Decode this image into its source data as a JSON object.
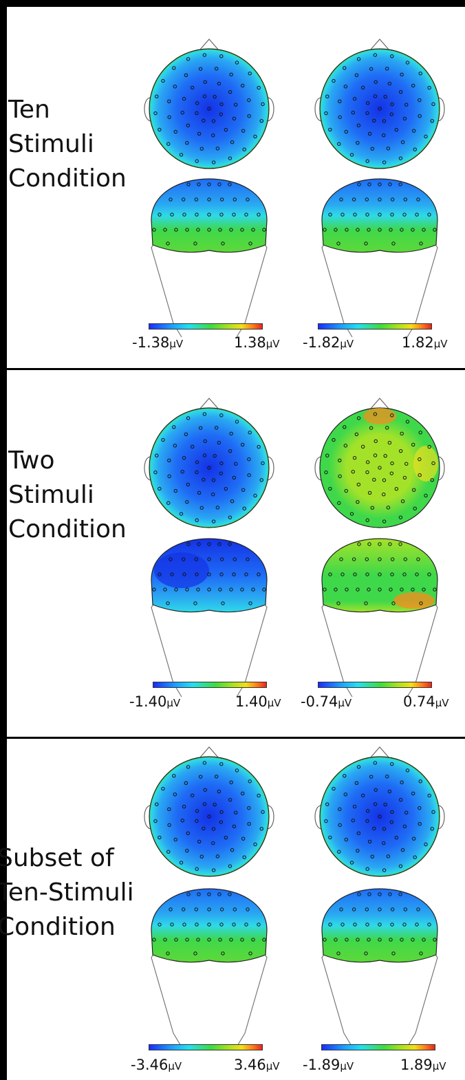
{
  "conditions": [
    {
      "label": [
        "Ten",
        "Stimuli",
        "Condition"
      ],
      "maps": [
        {
          "scale": {
            "min": "-1.38",
            "max": "1.38",
            "unit": "μV"
          },
          "top_pattern": "blue",
          "back_pattern": "blue-green"
        },
        {
          "scale": {
            "min": "-1.82",
            "max": "1.82",
            "unit": "μV"
          },
          "top_pattern": "blue",
          "back_pattern": "blue-green"
        }
      ]
    },
    {
      "label": [
        "Two",
        "Stimuli",
        "Condition"
      ],
      "maps": [
        {
          "scale": {
            "min": "-1.40",
            "max": "1.40",
            "unit": "μV"
          },
          "top_pattern": "blue",
          "back_pattern": "blue-left"
        },
        {
          "scale": {
            "min": "-0.74",
            "max": "0.74",
            "unit": "μV"
          },
          "top_pattern": "yellow-green",
          "back_pattern": "green-orange"
        }
      ]
    },
    {
      "label": [
        "Subset of",
        "Ten-Stimuli",
        "Condition"
      ],
      "maps": [
        {
          "scale": {
            "min": "-3.46",
            "max": "3.46",
            "unit": "μV"
          },
          "top_pattern": "blue",
          "back_pattern": "blue-green"
        },
        {
          "scale": {
            "min": "-1.89",
            "max": "1.89",
            "unit": "μV"
          },
          "top_pattern": "blue",
          "back_pattern": "blue-green"
        }
      ]
    }
  ],
  "colormap": [
    "#1a2dff",
    "#1da0ff",
    "#22e0f0",
    "#3ddc3d",
    "#a7e21f",
    "#f1e018",
    "#ff7a1a",
    "#e8261c"
  ]
}
